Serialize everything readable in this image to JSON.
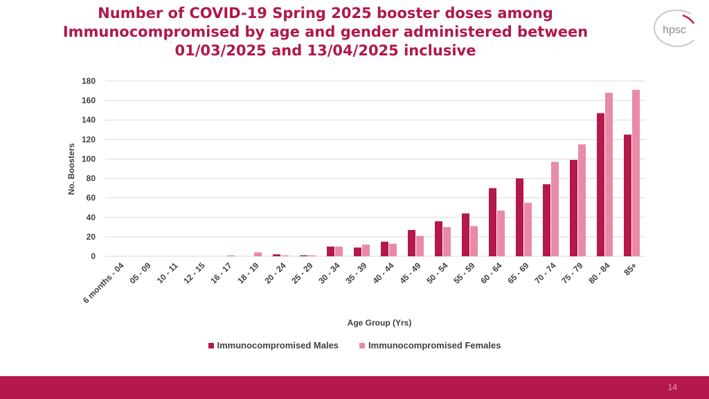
{
  "logo": {
    "text": "hpsc",
    "icon": "hpsc-logo-icon"
  },
  "footer": {
    "page_number": "14"
  },
  "colors": {
    "males": "#b5184a",
    "females": "#e98aa6",
    "title": "#b0184a"
  },
  "chart_data": {
    "type": "bar",
    "title": "Number of COVID-19 Spring 2025 booster doses among Immunocompromised by age and gender administered between 01/03/2025 and 13/04/2025 inclusive",
    "title_lines": [
      "Number of COVID-19 Spring 2025 booster doses among",
      "Immunocompromised by age and gender administered between",
      "01/03/2025 and 13/04/2025 inclusive"
    ],
    "xlabel": "Age Group (Yrs)",
    "ylabel": "No. Boosters",
    "ylim": [
      0,
      180
    ],
    "yticks": [
      0,
      20,
      40,
      60,
      80,
      100,
      120,
      140,
      160,
      180
    ],
    "grid": true,
    "legend_position": "bottom",
    "categories": [
      "6 months - 04",
      "05 - 09",
      "10 - 11",
      "12 - 15",
      "16 - 17",
      "18 - 19",
      "20 - 24",
      "25 - 29",
      "30 - 34",
      "35 - 39",
      "40 - 44",
      "45 - 49",
      "50 - 54",
      "55 - 59",
      "60 - 64",
      "65 - 69",
      "70 - 74",
      "75 - 79",
      "80 - 84",
      "85+"
    ],
    "series": [
      {
        "name": "Immunocompromised Males",
        "values": [
          0,
          0,
          0,
          0,
          0,
          0,
          2,
          1,
          10,
          9,
          15,
          27,
          36,
          44,
          70,
          80,
          74,
          99,
          147,
          125
        ]
      },
      {
        "name": "Immunocompromised Females",
        "values": [
          0,
          0,
          0,
          0,
          1,
          4,
          1,
          1,
          10,
          12,
          13,
          21,
          30,
          31,
          47,
          55,
          97,
          115,
          168,
          171
        ]
      }
    ]
  }
}
